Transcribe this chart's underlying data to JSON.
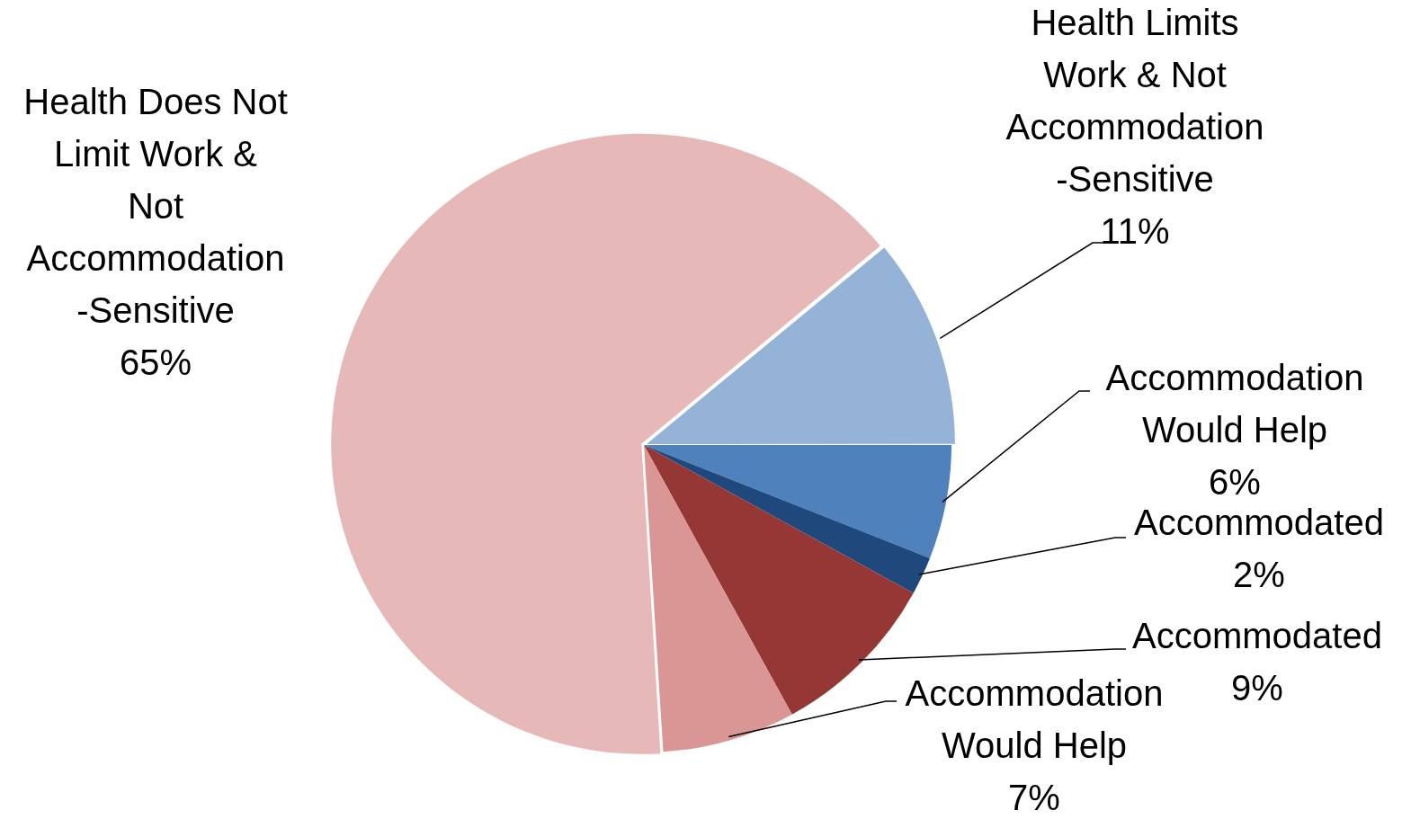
{
  "chart_data": {
    "type": "pie",
    "categories": [
      "Health Limits Work & Not Accommodation-Sensitive",
      "Accommodation Would Help",
      "Accommodated",
      "Accommodated",
      "Accommodation Would Help",
      "Health Does Not Limit Work & Not Accommodation-Sensitive"
    ],
    "values": [
      11,
      6,
      2,
      9,
      7,
      65
    ],
    "value_labels": [
      "11%",
      "6%",
      "2%",
      "9%",
      "7%",
      "65%"
    ],
    "colors": [
      "#95b3d7",
      "#4f81bd",
      "#1f497d",
      "#953735",
      "#d99694",
      "#e6b9b8"
    ],
    "legend": false
  }
}
